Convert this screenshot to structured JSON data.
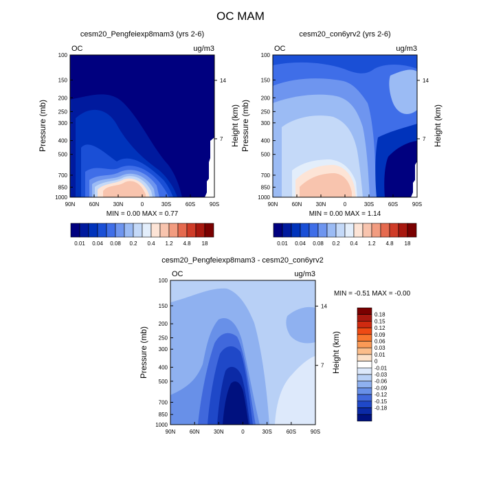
{
  "title": "OC MAM",
  "colors": {
    "abs_scale": [
      "#00007f",
      "#001a9e",
      "#0033bb",
      "#1a4fd6",
      "#3f6ee8",
      "#6e95ef",
      "#9bbbf4",
      "#c4d9f8",
      "#e3eefb",
      "#fde4d6",
      "#f8c4ae",
      "#f29c80",
      "#e56a4f",
      "#cf3c28",
      "#a8180f",
      "#7a0000"
    ],
    "diff_scale": [
      "#7a0000",
      "#a8180f",
      "#cf2a10",
      "#ee4a14",
      "#f8762e",
      "#fb9a56",
      "#fcbd8a",
      "#fde1c8",
      "#ffffff",
      "#dde9fb",
      "#b8d0f6",
      "#8fb1f0",
      "#6890e8",
      "#4068dc",
      "#1f48c8",
      "#0b2aa6",
      "#00117f"
    ]
  },
  "chart_data": [
    {
      "type": "heatmap",
      "title": "cesm20_Pengfeiexp8mam3 (yrs 2-6)",
      "corner_left": "OC",
      "corner_right": "ug/m3",
      "ylabel": "Pressure (mb)",
      "ylabel_right": "Height (km)",
      "x_ticks": [
        "90N",
        "60N",
        "30N",
        "0",
        "30S",
        "60S",
        "90S"
      ],
      "y_ticks": [
        "100",
        "150",
        "200",
        "250",
        "300",
        "400",
        "500",
        "700",
        "850",
        "1000"
      ],
      "y_right_ticks": [
        "14",
        "7"
      ],
      "stats": "MIN =   0.00   MAX =    0.77",
      "colorbar_labels": [
        "0.01",
        "0.04",
        "0.08",
        "0.2",
        "0.4",
        "1.2",
        "4.8",
        "18"
      ]
    },
    {
      "type": "heatmap",
      "title": "cesm20_con6yrv2 (yrs 2-6)",
      "corner_left": "OC",
      "corner_right": "ug/m3",
      "ylabel": "Pressure (mb)",
      "ylabel_right": "Height (km)",
      "x_ticks": [
        "90N",
        "60N",
        "30N",
        "0",
        "30S",
        "60S",
        "90S"
      ],
      "y_ticks": [
        "100",
        "150",
        "200",
        "250",
        "300",
        "400",
        "500",
        "700",
        "850",
        "1000"
      ],
      "y_right_ticks": [
        "14",
        "7"
      ],
      "stats": "MIN =   0.00   MAX =    1.14",
      "colorbar_labels": [
        "0.01",
        "0.04",
        "0.08",
        "0.2",
        "0.4",
        "1.2",
        "4.8",
        "18"
      ]
    },
    {
      "type": "heatmap",
      "title": "cesm20_Pengfeiexp8mam3 - cesm20_con6yrv2",
      "corner_left": "OC",
      "corner_right": "ug/m3",
      "ylabel": "Pressure (mb)",
      "ylabel_right": "Height (km)",
      "x_ticks": [
        "90N",
        "60N",
        "30N",
        "0",
        "30S",
        "60S",
        "90S"
      ],
      "y_ticks": [
        "100",
        "150",
        "200",
        "250",
        "300",
        "400",
        "500",
        "700",
        "850",
        "1000"
      ],
      "y_right_ticks": [
        "14",
        "7"
      ],
      "stats": "MIN =  -0.51   MAX =   -0.00",
      "colorbar_labels": [
        "0.18",
        "0.15",
        "0.12",
        "0.09",
        "0.06",
        "0.03",
        "0.01",
        "0",
        "-0.01",
        "-0.03",
        "-0.06",
        "-0.09",
        "-0.12",
        "-0.15",
        "-0.18"
      ]
    }
  ]
}
